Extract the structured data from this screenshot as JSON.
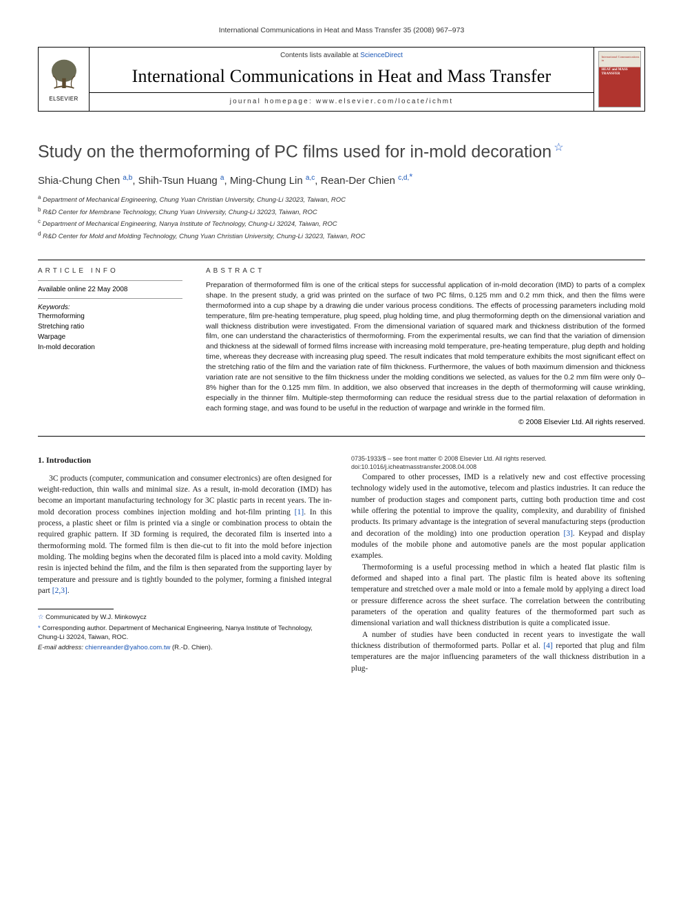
{
  "runningHead": "International Communications in Heat and Mass Transfer 35 (2008) 967–973",
  "header": {
    "contentsPrefix": "Contents lists available at ",
    "contentsLink": "ScienceDirect",
    "journal": "International Communications in Heat and Mass Transfer",
    "homepageLabel": "journal homepage: www.elsevier.com/locate/ichmt",
    "publisher": "ELSEVIER",
    "coverTop": "International Communications in",
    "coverTitle": "HEAT and MASS\nTRANSFER"
  },
  "title": "Study on the thermoforming of PC films used for in-mold decoration",
  "authors": [
    {
      "name": "Shia-Chung Chen",
      "sup": "a,b"
    },
    {
      "name": "Shih-Tsun Huang",
      "sup": "a"
    },
    {
      "name": "Ming-Chung Lin",
      "sup": "a,c"
    },
    {
      "name": "Rean-Der Chien",
      "sup": "c,d,",
      "star": true
    }
  ],
  "affiliations": [
    {
      "key": "a",
      "text": "Department of Mechanical Engineering, Chung Yuan Christian University, Chung-Li 32023, Taiwan, ROC"
    },
    {
      "key": "b",
      "text": "R&D Center for Membrane Technology, Chung Yuan University, Chung-Li 32023, Taiwan, ROC"
    },
    {
      "key": "c",
      "text": "Department of Mechanical Engineering, Nanya Institute of Technology, Chung-Li 32024, Taiwan, ROC"
    },
    {
      "key": "d",
      "text": "R&D Center for Mold and Molding Technology, Chung Yuan Christian University, Chung-Li 32023, Taiwan, ROC"
    }
  ],
  "articleInfo": {
    "heading": "ARTICLE INFO",
    "available": "Available online 22 May 2008",
    "keywordsLabel": "Keywords:",
    "keywords": [
      "Thermoforming",
      "Stretching ratio",
      "Warpage",
      "In-mold decoration"
    ]
  },
  "abstract": {
    "heading": "ABSTRACT",
    "body": "Preparation of thermoformed film is one of the critical steps for successful application of in-mold decoration (IMD) to parts of a complex shape. In the present study, a grid was printed on the surface of two PC films, 0.125 mm and 0.2 mm thick, and then the films were thermoformed into a cup shape by a drawing die under various process conditions. The effects of processing parameters including mold temperature, film pre-heating temperature, plug speed, plug holding time, and plug thermoforming depth on the dimensional variation and wall thickness distribution were investigated. From the dimensional variation of squared mark and thickness distribution of the formed film, one can understand the characteristics of thermoforming. From the experimental results, we can find that the variation of dimension and thickness at the sidewall of formed films increase with increasing mold temperature, pre-heating temperature, plug depth and holding time, whereas they decrease with increasing plug speed. The result indicates that mold temperature exhibits the most significant effect on the stretching ratio of the film and the variation rate of film thickness. Furthermore, the values of both maximum dimension and thickness variation rate are not sensitive to the film thickness under the molding conditions we selected, as values for the 0.2 mm film were only 0–8% higher than for the 0.125 mm film. In addition, we also observed that increases in the depth of thermoforming will cause wrinkling, especially in the thinner film. Multiple-step thermoforming can reduce the residual stress due to the partial relaxation of deformation in each forming stage, and was found to be useful in the reduction of warpage and wrinkle in the formed film.",
    "copyright": "© 2008 Elsevier Ltd. All rights reserved."
  },
  "intro": {
    "heading": "1. Introduction",
    "p1a": "3C products (computer, communication and consumer electronics) are often designed for weight-reduction, thin walls and minimal size. As a result, in-mold decoration (IMD) has become an important manufacturing technology for 3C plastic parts in recent years. The in-mold decoration process combines injection molding and hot-film printing ",
    "ref1": "[1]",
    "p1b": ". In this process, a plastic sheet or film is printed via a single or combination process to obtain the required graphic pattern. If 3D forming is required, the decorated film is inserted into a thermoforming mold. The formed film is then die-cut to fit into the mold before injection molding. The molding begins when the decorated film is placed into a mold cavity. Molding resin is injected behind the film, and the film is then separated from the supporting layer by temperature and pressure and is tightly bounded to the polymer, forming a finished integral part ",
    "ref23": "[2,3]",
    "p1c": ".",
    "p2a": "Compared to other processes, IMD is a relatively new and cost effective processing technology widely used in the automotive, telecom and plastics industries. It can reduce the number of production stages and component parts, cutting both production time and cost while offering the potential to improve the quality, complexity, and durability of finished products. Its primary advantage is the integration of several manufacturing steps (production and decoration of the molding) into one production operation ",
    "ref3": "[3]",
    "p2b": ". Keypad and display modules of the mobile phone and automotive panels are the most popular application examples.",
    "p3": "Thermoforming is a useful processing method in which a heated flat plastic film is deformed and shaped into a final part. The plastic film is heated above its softening temperature and stretched over a male mold or into a female mold by applying a direct load or pressure difference across the sheet surface. The correlation between the contributing parameters of the operation and quality features of the thermoformed part such as dimensional variation and wall thickness distribution is quite a complicated issue.",
    "p4a": "A number of studies have been conducted in recent years to investigate the wall thickness distribution of thermoformed parts. Pollar et al. ",
    "ref4": "[4]",
    "p4b": " reported that plug and film temperatures are the major influencing parameters of the wall thickness distribution in a plug-"
  },
  "footnotes": {
    "communicated": "Communicated by W.J. Minkowycz",
    "corresponding": "Corresponding author. Department of Mechanical Engineering, Nanya Institute of Technology, Chung-Li 32024, Taiwan, ROC.",
    "emailLabel": "E-mail address:",
    "email": "chienreander@yahoo.com.tw",
    "emailSuffix": "(R.-D. Chien)."
  },
  "bottom": {
    "issn": "0735-1933/$ – see front matter © 2008 Elsevier Ltd. All rights reserved.",
    "doi": "doi:10.1016/j.icheatmasstransfer.2008.04.008"
  },
  "colors": {
    "link": "#1855b5",
    "star": "#2a62c9",
    "coverRed": "#b0342e"
  }
}
